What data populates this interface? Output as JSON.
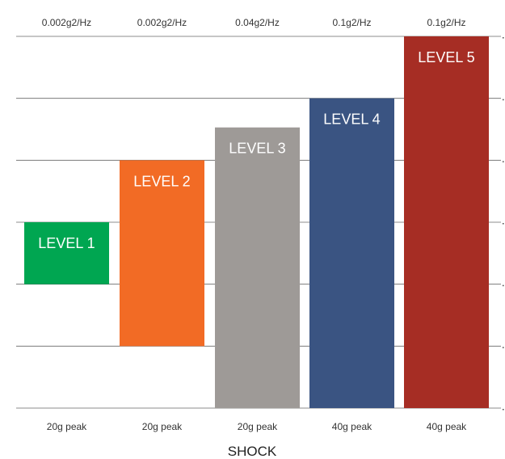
{
  "chart_data": {
    "type": "bar",
    "title": "",
    "xlabel": "SHOCK",
    "ylabel": "",
    "ylim": [
      0,
      6
    ],
    "grid": true,
    "categories": [
      "LEVEL 1",
      "LEVEL 2",
      "LEVEL 3",
      "LEVEL 4",
      "LEVEL 5"
    ],
    "top_labels": [
      "0.002g2/Hz",
      "0.002g2/Hz",
      "0.04g2/Hz",
      "0.1g2/Hz",
      "0.1g2/Hz"
    ],
    "bottom_labels": [
      "20g peak",
      "20g peak",
      "20g peak",
      "40g peak",
      "40g peak"
    ],
    "bars": [
      {
        "label": "LEVEL 1",
        "bottom": 2.0,
        "top": 3.0
      },
      {
        "label": "LEVEL 2",
        "bottom": 1.0,
        "top": 4.0
      },
      {
        "label": "LEVEL 3",
        "bottom": 0.0,
        "top": 4.53
      },
      {
        "label": "LEVEL 4",
        "bottom": 0.0,
        "top": 5.0
      },
      {
        "label": "LEVEL 5",
        "bottom": 0.0,
        "top": 6.0
      }
    ],
    "colors": [
      "#00A651",
      "#F26B25",
      "#9E9A97",
      "#3A5482",
      "#A62D24"
    ]
  }
}
